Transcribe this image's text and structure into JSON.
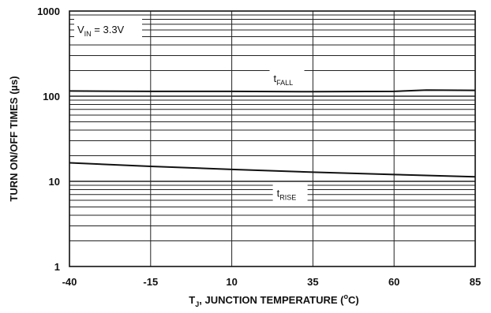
{
  "chart_data": {
    "type": "line",
    "title": "",
    "xlabel": {
      "main": "T",
      "sub": "J",
      "rest": ", JUNCTION TEMPERATURE (",
      "sup": "o",
      "unit": "C)"
    },
    "ylabel": "TURN ON/OFF TIMES (µs)",
    "xlim": [
      -40,
      85
    ],
    "ylim": [
      1,
      1000
    ],
    "y_scale": "log",
    "grid": true,
    "x_ticks": [
      "-40",
      "-15",
      "10",
      "35",
      "60",
      "85"
    ],
    "x_tick_values": [
      -40,
      -15,
      10,
      35,
      60,
      85
    ],
    "y_ticks": [
      "1",
      "10",
      "100",
      "1000"
    ],
    "y_tick_values": [
      1,
      10,
      100,
      1000
    ],
    "annotation": {
      "main": "V",
      "sub": "IN",
      "rest": " = 3.3V"
    },
    "series": [
      {
        "name": "tFALL",
        "label_main": "t",
        "label_sub": "FALL",
        "x": [
          -40,
          -15,
          10,
          35,
          60,
          70,
          85
        ],
        "y": [
          115,
          114,
          114,
          113,
          114,
          118,
          117
        ]
      },
      {
        "name": "tRISE",
        "label_main": "t",
        "label_sub": "RISE",
        "x": [
          -40,
          -15,
          10,
          35,
          60,
          85
        ],
        "y": [
          16.5,
          15,
          13.8,
          12.8,
          12,
          11.3
        ]
      }
    ]
  }
}
